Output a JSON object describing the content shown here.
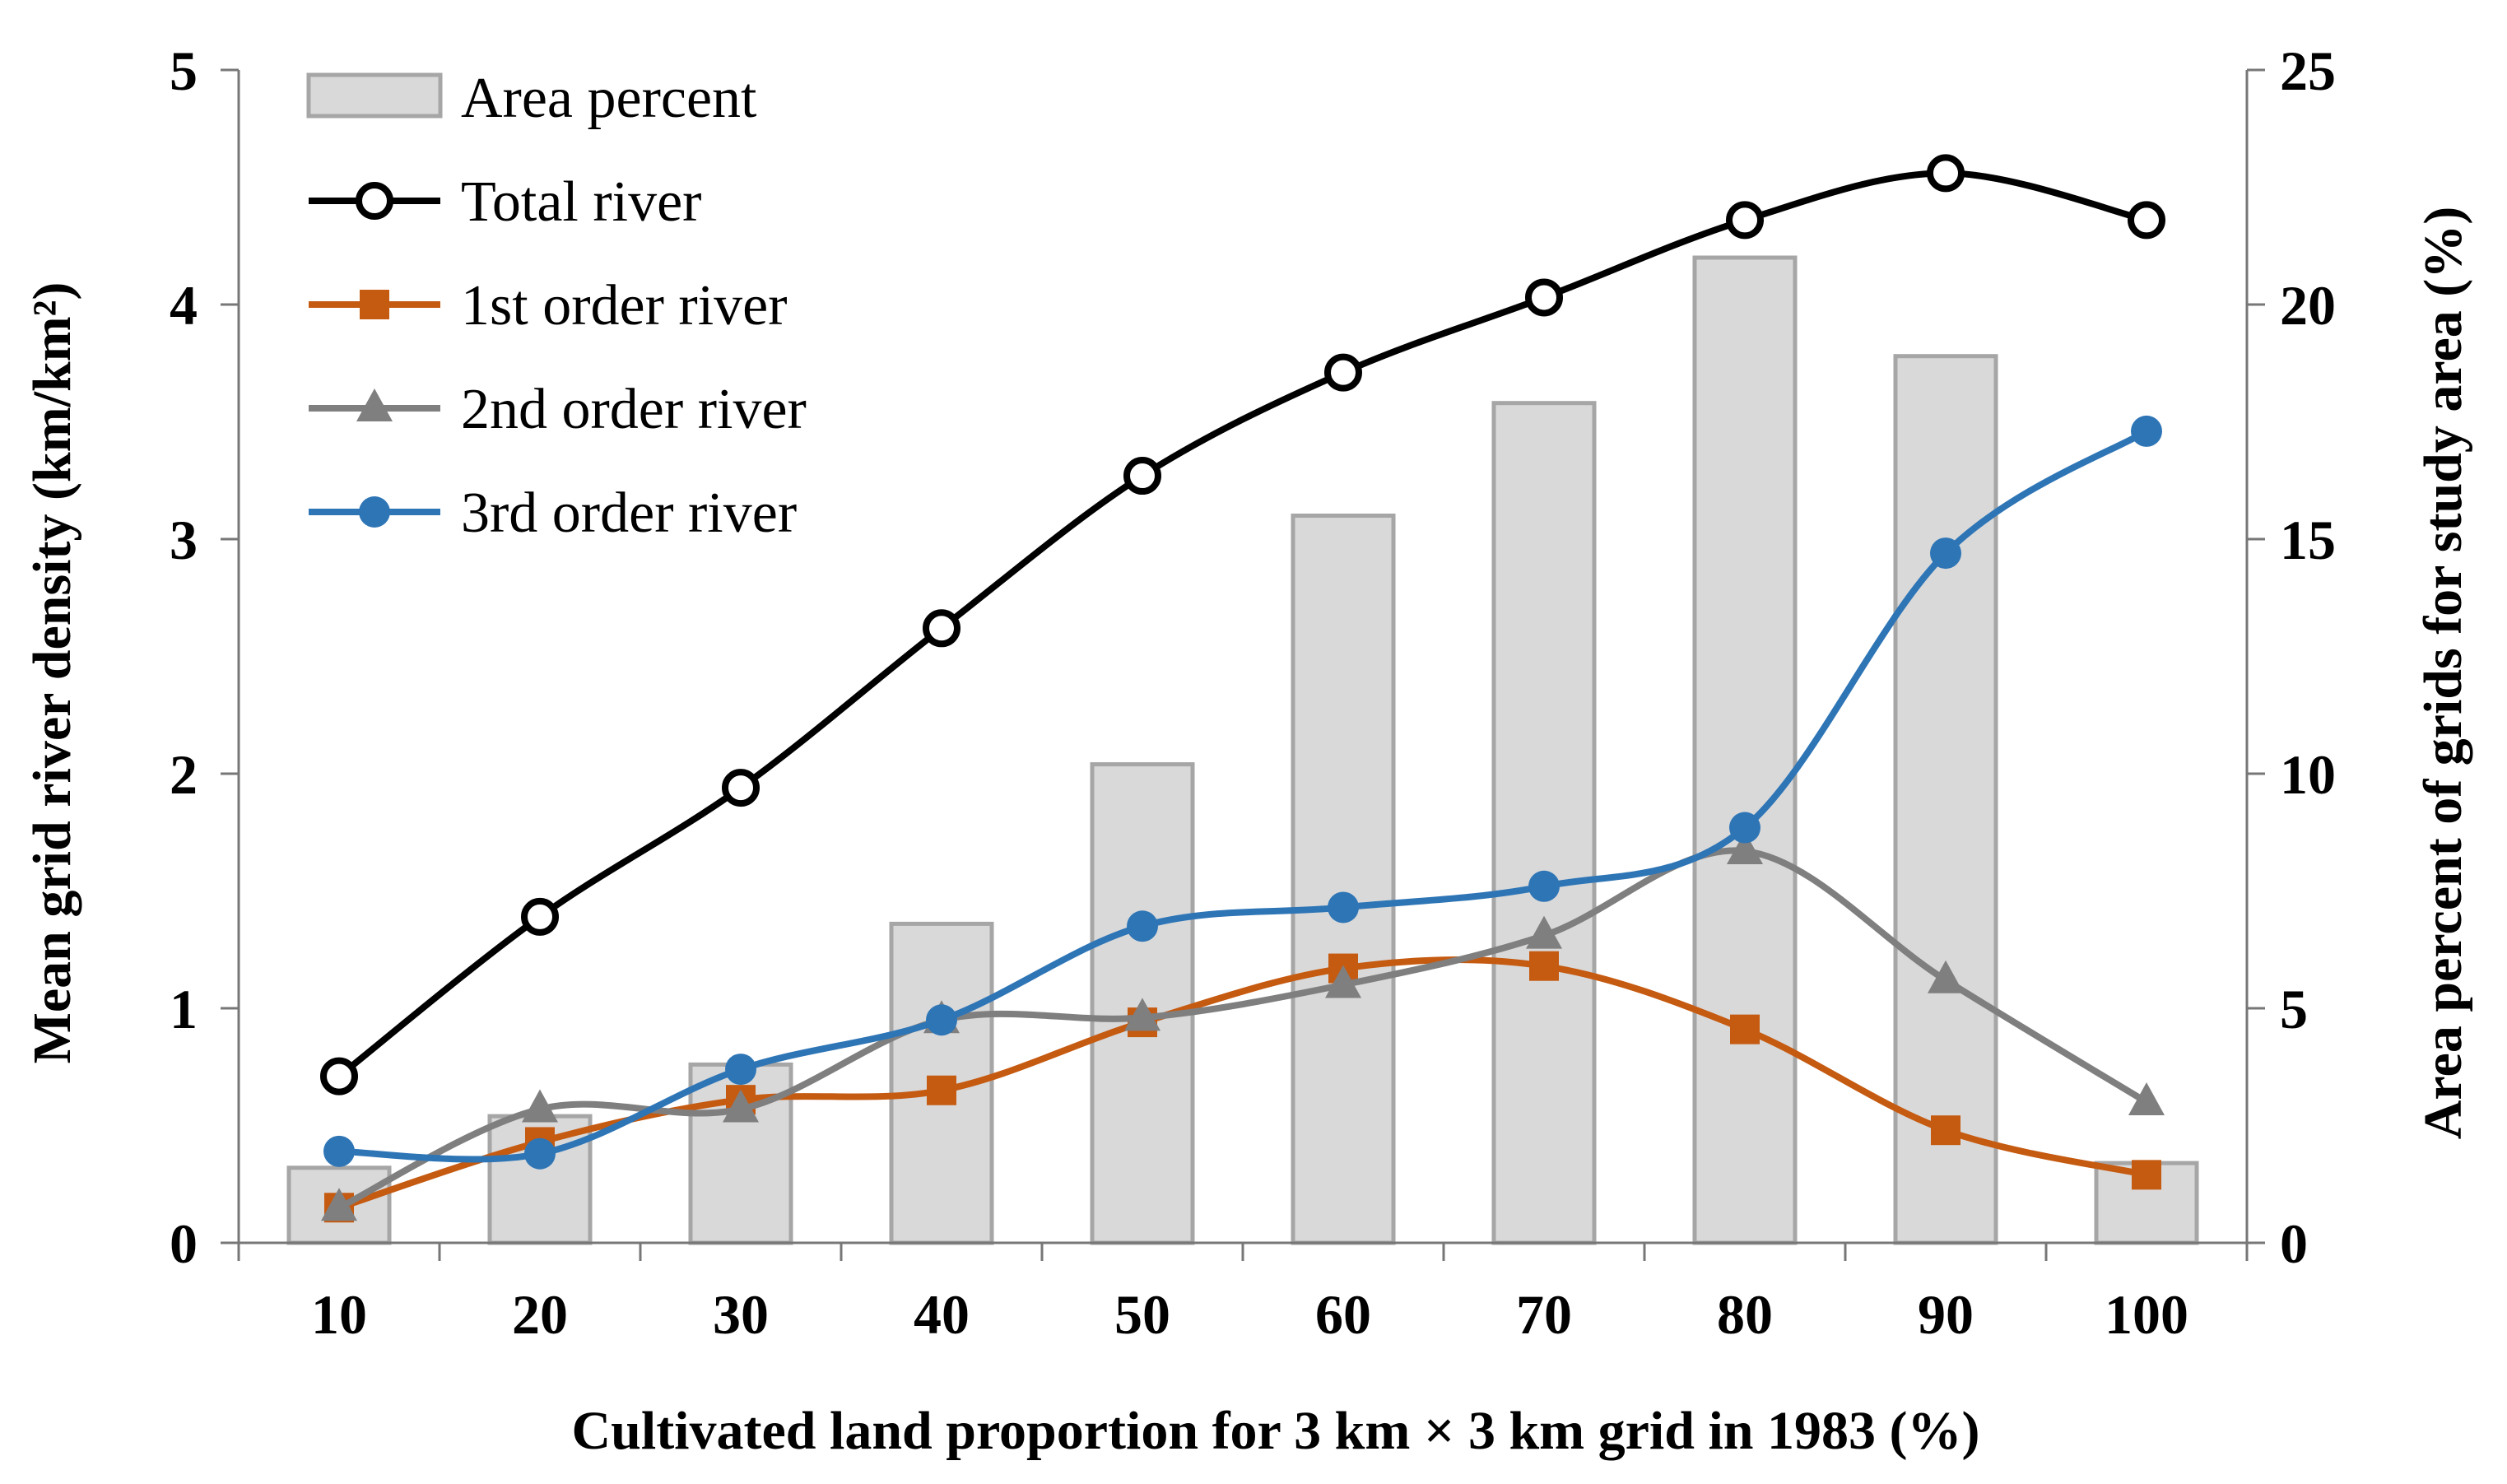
{
  "chart_data": {
    "type": "bar+line",
    "title": "",
    "categories": [
      "10",
      "20",
      "30",
      "40",
      "50",
      "60",
      "70",
      "80",
      "90",
      "100"
    ],
    "xlabel": "Cultivated land proportion for 3 km × 3 km grid in 1983 (%)",
    "ylabel_left": "Mean grid river density (km/km²)",
    "ylabel_right": "Area percent of grids for study area  (%)",
    "ylim_left": [
      0,
      5
    ],
    "ylim_right": [
      0,
      25
    ],
    "left_ticks": [
      "0",
      "1",
      "2",
      "3",
      "4",
      "5"
    ],
    "right_ticks": [
      "0",
      "5",
      "10",
      "15",
      "20",
      "25"
    ],
    "legend_position": "top-left",
    "bars": {
      "name": "Area percent",
      "axis": "right",
      "color": "#d9d9d9",
      "edge": "#a6a6a6",
      "values": [
        1.6,
        2.7,
        3.8,
        6.8,
        10.2,
        15.5,
        17.9,
        21.0,
        18.9,
        1.7
      ]
    },
    "series": [
      {
        "name": "Total river",
        "axis": "left",
        "color": "#000000",
        "marker": "open-circle",
        "values": [
          0.71,
          1.39,
          1.94,
          2.62,
          3.27,
          3.71,
          4.03,
          4.36,
          4.56,
          4.36
        ]
      },
      {
        "name": "1st order river",
        "axis": "left",
        "color": "#c55a11",
        "marker": "square",
        "values": [
          0.15,
          0.43,
          0.61,
          0.65,
          0.94,
          1.17,
          1.18,
          0.91,
          0.48,
          0.29
        ]
      },
      {
        "name": "2nd order river",
        "axis": "left",
        "color": "#7f7f7f",
        "marker": "triangle",
        "values": [
          0.15,
          0.57,
          0.57,
          0.95,
          0.96,
          1.1,
          1.31,
          1.67,
          1.12,
          0.6
        ]
      },
      {
        "name": "3rd order river",
        "axis": "left",
        "color": "#2e75b6",
        "marker": "circle",
        "values": [
          0.39,
          0.38,
          0.74,
          0.95,
          1.35,
          1.43,
          1.52,
          1.77,
          2.94,
          3.46
        ]
      }
    ]
  }
}
